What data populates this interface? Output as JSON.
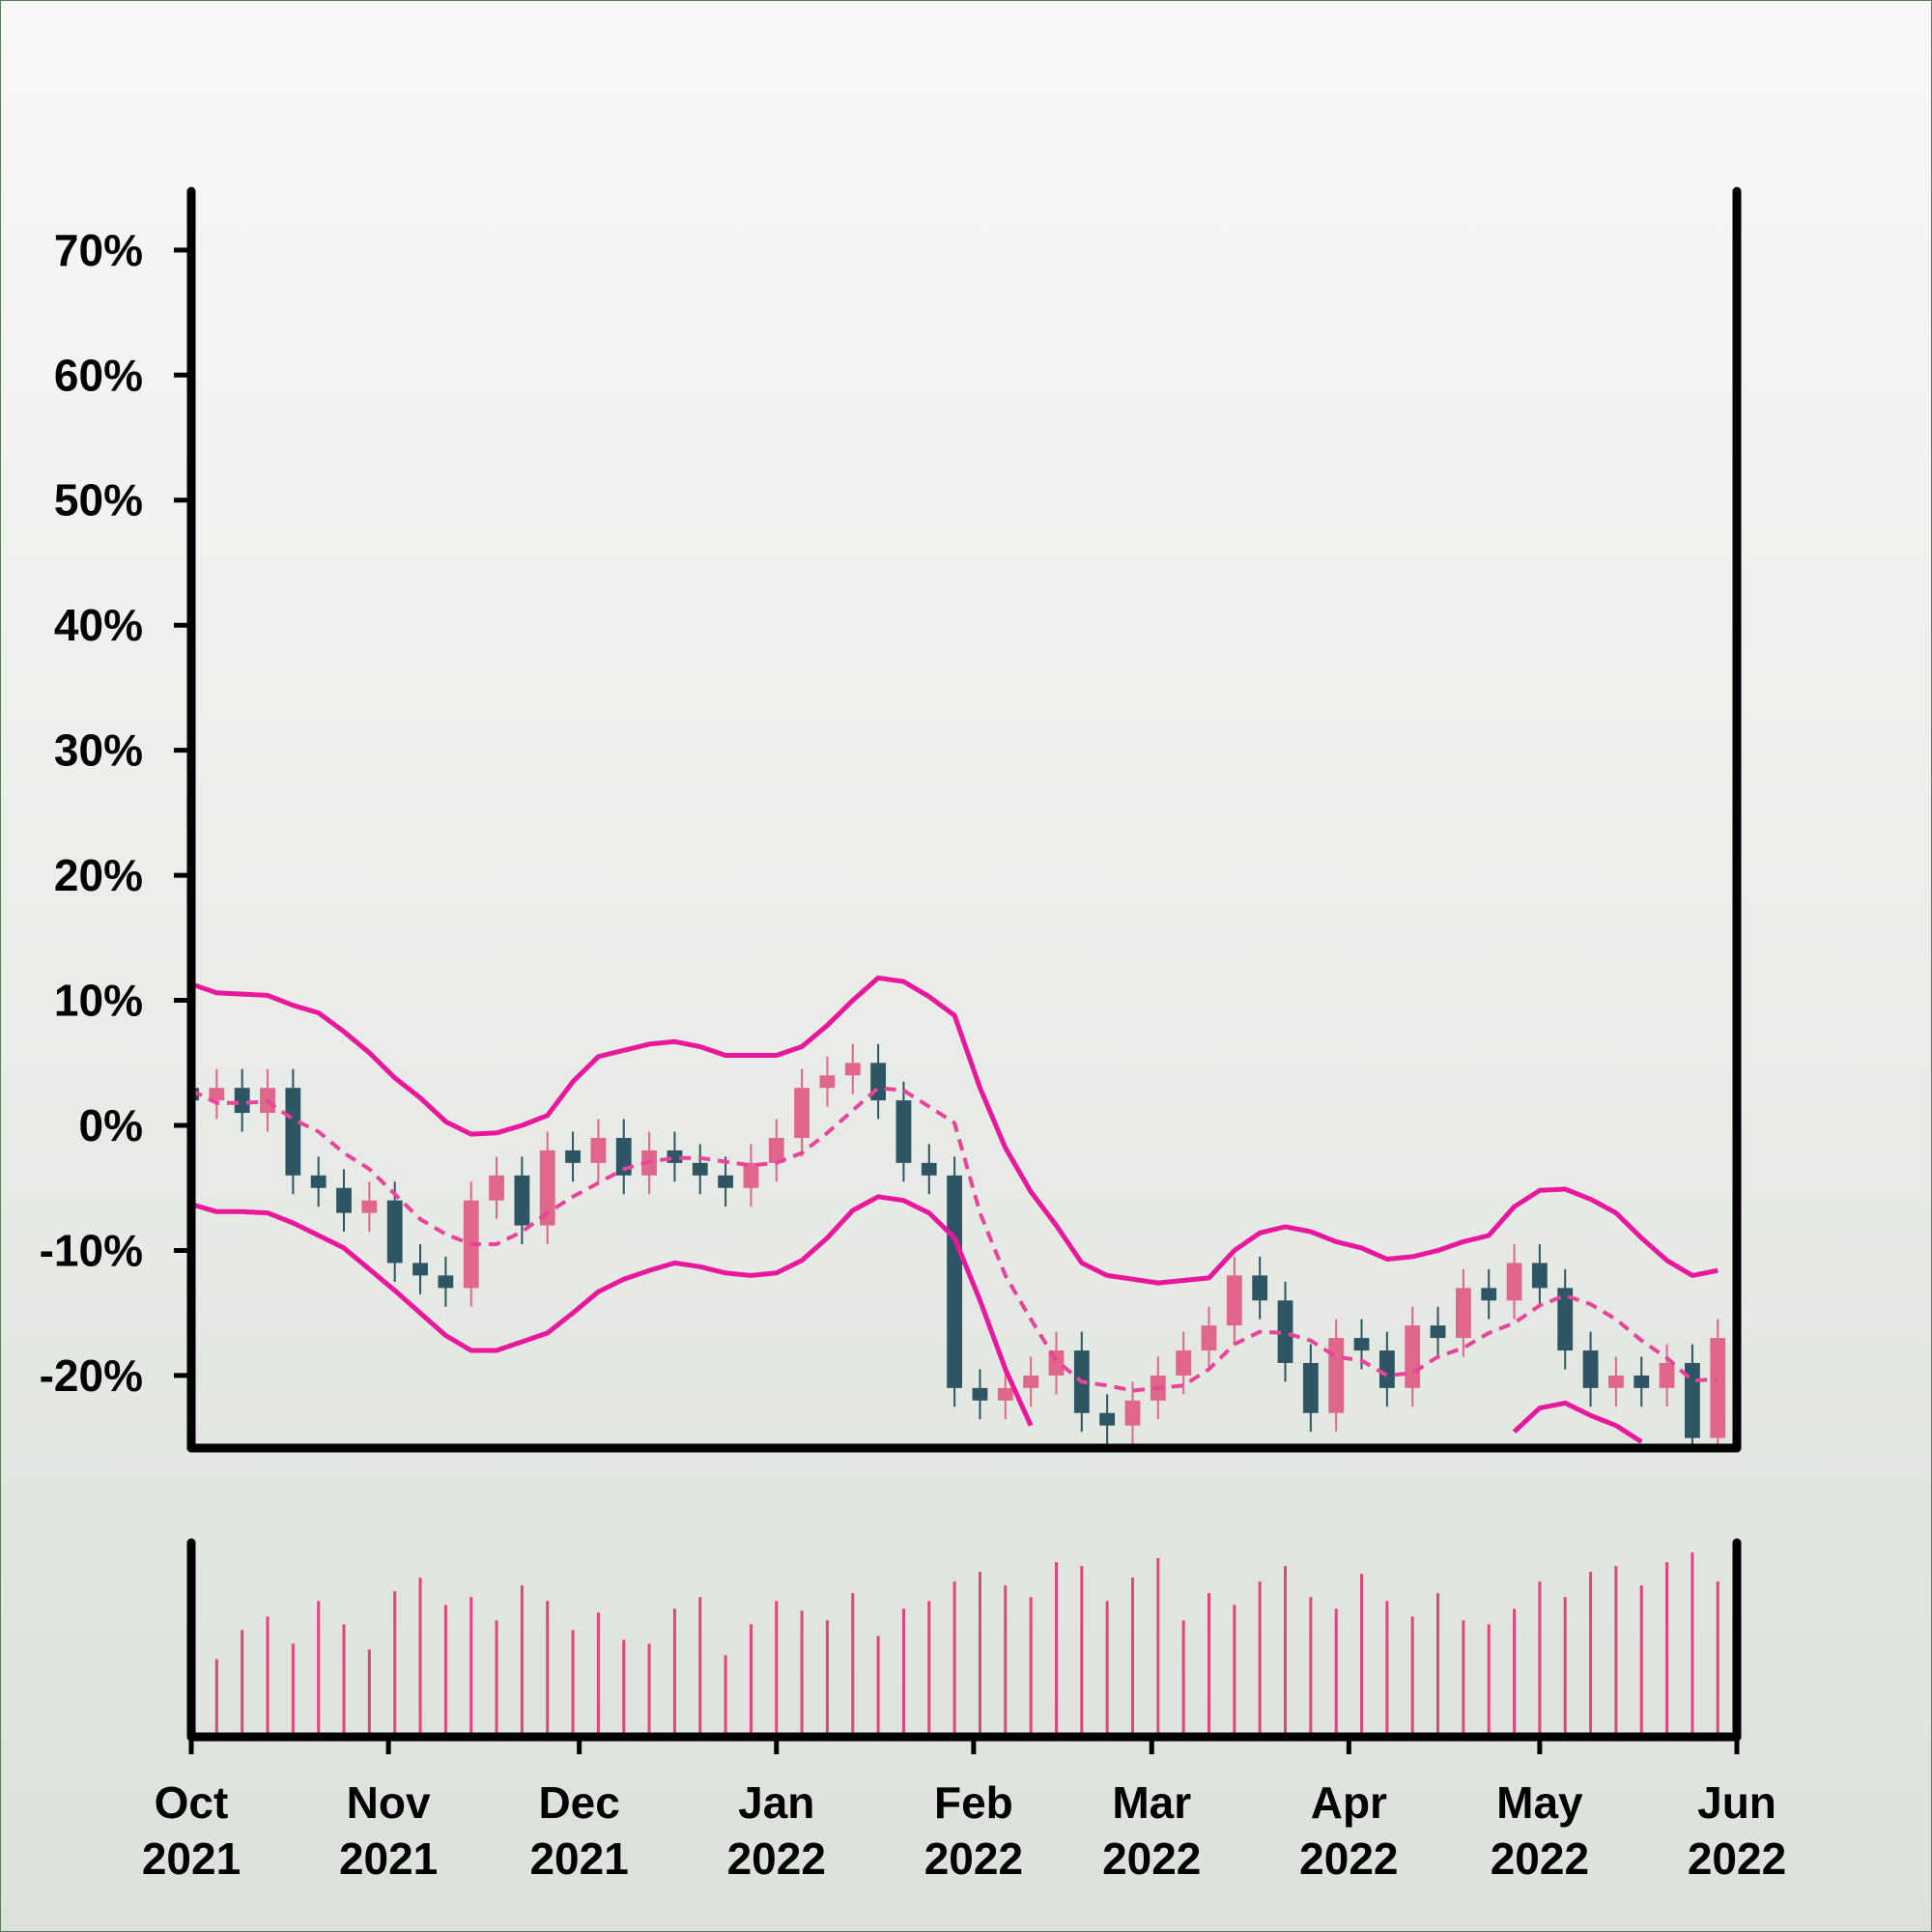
{
  "chart_data": {
    "type": "candlestick",
    "x": [
      0,
      4,
      8,
      12,
      16,
      20,
      24,
      28,
      32,
      36,
      40,
      44,
      48,
      52,
      56,
      60,
      64,
      68,
      72,
      76,
      80,
      84,
      88,
      92,
      96,
      100,
      104,
      108,
      112,
      116,
      120,
      124,
      128,
      132,
      136,
      140,
      144,
      148,
      152,
      156,
      160,
      164,
      168,
      172,
      176,
      180,
      184,
      188,
      192,
      196,
      200,
      204,
      208,
      212,
      216,
      220,
      224,
      228,
      232,
      236,
      240
    ],
    "open": [
      3,
      2,
      3,
      1,
      3,
      -4,
      -5,
      -7,
      -6,
      -11,
      -12,
      -13,
      -6,
      -4,
      -8,
      -2,
      -3,
      -1,
      -4,
      -2,
      -3,
      -4,
      -5,
      -3,
      -1,
      3,
      4,
      5,
      2,
      -3,
      -4,
      -21,
      -22,
      -21,
      -20,
      -18,
      -23,
      -24,
      -22,
      -20,
      -18,
      -16,
      -12,
      -14,
      -19,
      -23,
      -17,
      -18,
      -21,
      -16,
      -17,
      -13,
      -14,
      -11,
      -13,
      -18,
      -21,
      -20,
      -21,
      -19,
      -25
    ],
    "high": [
      4.5,
      4.5,
      4.5,
      4.5,
      4.5,
      -2.5,
      -3.5,
      -4.5,
      -4.5,
      -9.5,
      -10.5,
      -4.5,
      -2.5,
      -2.5,
      -0.5,
      -0.5,
      0.5,
      0.5,
      -0.5,
      -0.5,
      -1.5,
      -2.5,
      -1.5,
      0.5,
      4.5,
      5.5,
      6.5,
      6.5,
      3.5,
      -1.5,
      -2.5,
      -19.5,
      -19.5,
      -18.5,
      -16.5,
      -16.5,
      -21.5,
      -20.5,
      -18.5,
      -16.5,
      -14.5,
      -10.5,
      -10.5,
      -12.5,
      -17.5,
      -15.5,
      -15.5,
      -16.5,
      -14.5,
      -14.5,
      -11.5,
      -11.5,
      -9.5,
      -9.5,
      -11.5,
      -16.5,
      -18.5,
      -18.5,
      -17.5,
      -17.5,
      -15.5
    ],
    "low": [
      0.5,
      0.5,
      -0.5,
      -0.5,
      -5.5,
      -6.5,
      -8.5,
      -8.5,
      -12.5,
      -13.5,
      -14.5,
      -14.5,
      -7.5,
      -9.5,
      -9.5,
      -4.5,
      -4.5,
      -5.5,
      -5.5,
      -4.5,
      -5.5,
      -6.5,
      -6.5,
      -4.5,
      -2.5,
      1.5,
      2.5,
      0.5,
      -4.5,
      -5.5,
      -22.5,
      -23.5,
      -23.5,
      -22.5,
      -21.5,
      -24.5,
      -25.5,
      -25.5,
      -23.5,
      -21.5,
      -19.5,
      -17.5,
      -15.5,
      -20.5,
      -24.5,
      -24.5,
      -19.5,
      -22.5,
      -22.5,
      -18.5,
      -18.5,
      -15.5,
      -15.5,
      -14.5,
      -19.5,
      -22.5,
      -22.5,
      -22.5,
      -22.5,
      -26.5,
      -26.5
    ],
    "close": [
      2,
      3,
      1,
      3,
      -4,
      -5,
      -7,
      -6,
      -11,
      -12,
      -13,
      -6,
      -4,
      -8,
      -2,
      -3,
      -1,
      -4,
      -2,
      -3,
      -4,
      -5,
      -3,
      -1,
      3,
      4,
      5,
      2,
      -3,
      -4,
      -21,
      -22,
      -21,
      -20,
      -18,
      -23,
      -24,
      -22,
      -20,
      -18,
      -16,
      -12,
      -14,
      -19,
      -23,
      -17,
      -18,
      -21,
      -16,
      -17,
      -13,
      -14,
      -11,
      -13,
      -18,
      -21,
      -20,
      -21,
      -19,
      -25,
      -17
    ],
    "up_color": "#e0668c",
    "down_color": "#2e5563",
    "bands": [
      {
        "color": "#e8179b",
        "dashed": false,
        "values": [
          11.3,
          10.6,
          10.5,
          10.4,
          9.6,
          9.0,
          7.5,
          5.8,
          3.8,
          2.2,
          0.3,
          -0.7,
          -0.6,
          0,
          0.8,
          3.5,
          5.5,
          6.0,
          6.5,
          6.7,
          6.3,
          5.6,
          5.6,
          5.6,
          6.3,
          8.0,
          10.0,
          11.8,
          11.5,
          10.3,
          8.8,
          3.0,
          -1.8,
          -5.3,
          -8.0,
          -11.0,
          -12.0,
          -12.3,
          -12.6,
          -12.4,
          -12.2,
          -10.0,
          -8.6,
          -8.1,
          -8.5,
          -9.3,
          -9.8,
          -10.7,
          -10.5,
          -10.0,
          -9.3,
          -8.8,
          -6.5,
          -5.2,
          -5.1,
          -5.9,
          -7.0,
          -9.0,
          -10.8,
          -12.0,
          -11.6
        ]
      },
      {
        "color": "#e8449a",
        "dashed": true,
        "values": [
          2.8,
          1.8,
          1.8,
          1.9,
          0.5,
          -0.5,
          -2.2,
          -3.5,
          -5.5,
          -7.5,
          -8.7,
          -9.5,
          -9.5,
          -8.5,
          -7.0,
          -5.7,
          -4.6,
          -3.5,
          -2.9,
          -2.6,
          -2.6,
          -2.9,
          -3.2,
          -3.0,
          -2.2,
          -0.6,
          1.2,
          3.0,
          2.8,
          1.5,
          0.2,
          -7.0,
          -12.0,
          -15.5,
          -18.8,
          -20.5,
          -20.8,
          -21.2,
          -21.0,
          -20.8,
          -19.5,
          -17.5,
          -16.5,
          -16.6,
          -17.2,
          -18.5,
          -18.8,
          -20.0,
          -19.8,
          -18.5,
          -17.8,
          -16.6,
          -15.8,
          -14.4,
          -13.6,
          -14.3,
          -15.5,
          -17.2,
          -18.6,
          -20.4,
          -20.3
        ]
      },
      {
        "color": "#e8179b",
        "dashed": false,
        "values": [
          -6.3,
          -6.9,
          -6.9,
          -7.0,
          -7.8,
          -8.8,
          -9.8,
          -11.5,
          -13.2,
          -15.0,
          -16.8,
          -18.0,
          -18.0,
          -17.3,
          -16.6,
          -15.0,
          -13.3,
          -12.3,
          -11.6,
          -11.0,
          -11.3,
          -11.8,
          -12.0,
          -11.8,
          -10.8,
          -9.0,
          -6.8,
          -5.7,
          -6.0,
          -7.0,
          -9.0,
          -14.0,
          -19.5,
          -24.0,
          null,
          null,
          null,
          null,
          null,
          null,
          null,
          null,
          null,
          null,
          null,
          null,
          null,
          null,
          null,
          null,
          null,
          null,
          -24.5,
          -22.6,
          -22.2,
          -23.2,
          -24.0,
          -25.3,
          null,
          null,
          null
        ]
      }
    ],
    "volume": {
      "color": "#e0457b",
      "lim": [
        0,
        100
      ],
      "values": [
        12,
        40,
        55,
        62,
        48,
        70,
        58,
        45,
        75,
        82,
        68,
        72,
        60,
        78,
        70,
        55,
        64,
        50,
        48,
        66,
        72,
        42,
        58,
        70,
        65,
        60,
        74,
        52,
        66,
        70,
        80,
        85,
        78,
        72,
        90,
        88,
        70,
        82,
        92,
        60,
        74,
        68,
        80,
        88,
        72,
        66,
        84,
        70,
        62,
        74,
        60,
        58,
        66,
        80,
        72,
        85,
        88,
        78,
        90,
        95,
        80
      ]
    },
    "xlim": [
      0,
      243
    ],
    "xticks": [
      {
        "value": 0,
        "label": "Oct 2021"
      },
      {
        "value": 31,
        "label": "Nov 2021"
      },
      {
        "value": 61,
        "label": "Dec 2021"
      },
      {
        "value": 92,
        "label": "Jan 2022"
      },
      {
        "value": 123,
        "label": "Feb 2022"
      },
      {
        "value": 151,
        "label": "Mar 2022"
      },
      {
        "value": 182,
        "label": "Apr 2022"
      },
      {
        "value": 212,
        "label": "May 2022"
      },
      {
        "value": 243,
        "label": "Jun 2022"
      }
    ],
    "ylim": [
      -25.8,
      74.7
    ],
    "yticks": [
      {
        "value": -20,
        "label": "-20%"
      },
      {
        "value": -10,
        "label": "-10%"
      },
      {
        "value": 0,
        "label": "0%"
      },
      {
        "value": 10,
        "label": "10%"
      },
      {
        "value": 20,
        "label": "20%"
      },
      {
        "value": 30,
        "label": "30%"
      },
      {
        "value": 40,
        "label": "40%"
      },
      {
        "value": 50,
        "label": "50%"
      },
      {
        "value": 60,
        "label": "60%"
      },
      {
        "value": 70,
        "label": "70%"
      }
    ]
  }
}
